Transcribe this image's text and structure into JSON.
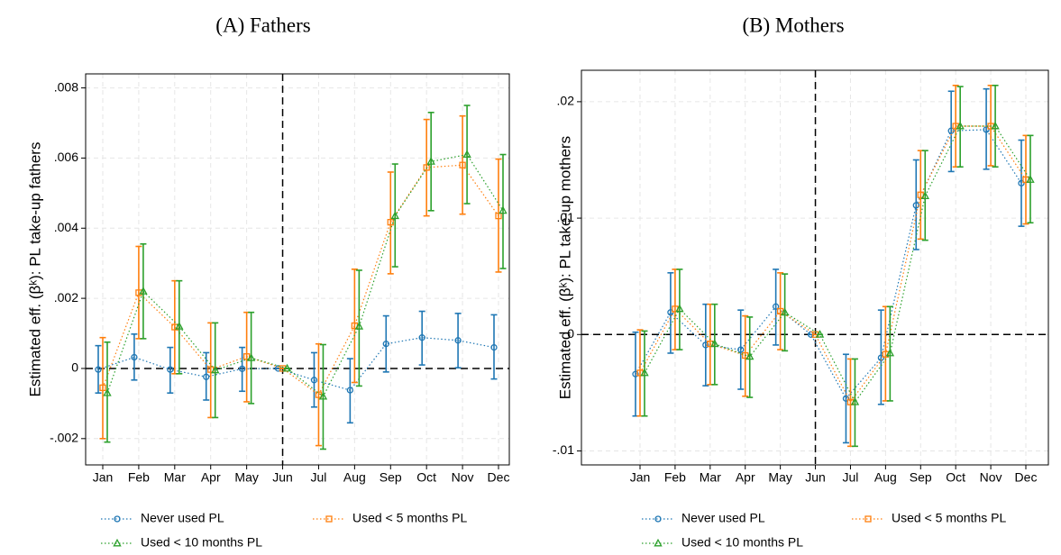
{
  "chart_data": [
    {
      "type": "errorbar",
      "title": "(A) Fathers",
      "ylabel": "Estimated eff. (βᵏ): PL take-up fathers",
      "categories": [
        "Jan",
        "Feb",
        "Mar",
        "Apr",
        "May",
        "Jun",
        "Jul",
        "Aug",
        "Sep",
        "Oct",
        "Nov",
        "Dec"
      ],
      "ylim": [
        -0.00275,
        0.0084
      ],
      "yticks": [
        {
          "value": -0.002,
          "label": "-.002"
        },
        {
          "value": 0,
          "label": "0"
        },
        {
          "value": 0.002,
          "label": ".002"
        },
        {
          "value": 0.004,
          "label": ".004"
        },
        {
          "value": 0.006,
          "label": ".006"
        },
        {
          "value": 0.008,
          "label": ".008"
        }
      ],
      "grid": true,
      "hline": 0,
      "vline_at": "Jun",
      "legend": "bottom",
      "series": [
        {
          "name": "Never used PL",
          "color": "#1f77b4",
          "marker": "circle",
          "values": [
            -3e-05,
            0.00032,
            -3e-05,
            -0.00024,
            -1e-05,
            0,
            -0.00033,
            -0.00062,
            0.0007,
            0.00088,
            0.0008,
            0.0006
          ],
          "low": [
            -0.0007,
            -0.00033,
            -0.0007,
            -0.0009,
            -0.00065,
            0,
            -0.0011,
            -0.00155,
            -0.0001,
            0.0001,
            2e-05,
            -0.0003
          ],
          "high": [
            0.00065,
            0.00098,
            0.0006,
            0.00045,
            0.0006,
            0,
            0.00045,
            0.00028,
            0.0015,
            0.00163,
            0.00157,
            0.00153
          ]
        },
        {
          "name": "Used < 5 months PL",
          "color": "#ff7f0e",
          "marker": "square",
          "values": [
            -0.00055,
            0.00216,
            0.00118,
            -3e-05,
            0.00034,
            0,
            -0.00075,
            0.00122,
            0.00417,
            0.00573,
            0.0058,
            0.00435
          ],
          "low": [
            -0.002,
            0.00085,
            -0.00015,
            -0.0014,
            -0.00095,
            0,
            -0.0022,
            -0.0004,
            0.0027,
            0.00435,
            0.0044,
            0.00275
          ],
          "high": [
            0.00088,
            0.00348,
            0.0025,
            0.0013,
            0.0016,
            0,
            0.0007,
            0.00283,
            0.0056,
            0.0071,
            0.0072,
            0.00597
          ]
        },
        {
          "name": "Used < 10 months PL",
          "color": "#2ca02c",
          "marker": "triangle",
          "values": [
            -0.0007,
            0.0022,
            0.0012,
            -5e-05,
            0.0003,
            0,
            -0.0008,
            0.0012,
            0.00435,
            0.0059,
            0.0061,
            0.0045
          ],
          "low": [
            -0.0021,
            0.00085,
            -0.00015,
            -0.0014,
            -0.001,
            0,
            -0.0023,
            -0.0005,
            0.0029,
            0.0045,
            0.0047,
            0.00285
          ],
          "high": [
            0.00075,
            0.00355,
            0.0025,
            0.0013,
            0.0016,
            0,
            0.00068,
            0.0028,
            0.00583,
            0.0073,
            0.0075,
            0.0061
          ]
        }
      ]
    },
    {
      "type": "errorbar",
      "title": "(B) Mothers",
      "ylabel": "Estimated eff. (βᵏ): PL take-up mothers",
      "categories": [
        "Jan",
        "Feb",
        "Mar",
        "Apr",
        "May",
        "Jun",
        "Jul",
        "Aug",
        "Sep",
        "Oct",
        "Nov",
        "Dec"
      ],
      "ylim": [
        -0.0112,
        0.0227
      ],
      "yticks": [
        {
          "value": -0.01,
          "label": "-.01"
        },
        {
          "value": 0,
          "label": "0"
        },
        {
          "value": 0.01,
          "label": ".01"
        },
        {
          "value": 0.02,
          "label": ".02"
        }
      ],
      "grid": true,
      "hline": 0,
      "vline_at": "Jun",
      "legend": "bottom",
      "series": [
        {
          "name": "Never used PL",
          "color": "#1f77b4",
          "marker": "circle",
          "values": [
            -0.0034,
            0.0019,
            -0.0009,
            -0.0013,
            0.0024,
            0,
            -0.0055,
            -0.002,
            0.0111,
            0.0175,
            0.0176,
            0.013
          ],
          "low": [
            -0.007,
            -0.0016,
            -0.0044,
            -0.0047,
            -0.0009,
            0,
            -0.0093,
            -0.006,
            0.0073,
            0.014,
            0.0142,
            0.0093
          ],
          "high": [
            0.0002,
            0.0053,
            0.0026,
            0.0021,
            0.0056,
            0,
            -0.0017,
            0.0021,
            0.015,
            0.0209,
            0.0211,
            0.0167
          ]
        },
        {
          "name": "Used < 5 months PL",
          "color": "#ff7f0e",
          "marker": "square",
          "values": [
            -0.0033,
            0.0022,
            -0.0008,
            -0.0018,
            0.002,
            0,
            -0.0058,
            -0.0017,
            0.012,
            0.0179,
            0.0179,
            0.0133
          ],
          "low": [
            -0.007,
            -0.0013,
            -0.0043,
            -0.0053,
            -0.0013,
            0,
            -0.0096,
            -0.0057,
            0.0082,
            0.0144,
            0.0145,
            0.0095
          ],
          "high": [
            0.0004,
            0.0056,
            0.0026,
            0.0016,
            0.0053,
            0,
            -0.0021,
            0.0024,
            0.0158,
            0.0214,
            0.0214,
            0.0171
          ]
        },
        {
          "name": "Used < 10 months PL",
          "color": "#2ca02c",
          "marker": "triangle",
          "values": [
            -0.0033,
            0.0022,
            -0.0008,
            -0.0019,
            0.0019,
            0,
            -0.0058,
            -0.0016,
            0.0119,
            0.0179,
            0.0179,
            0.0133
          ],
          "low": [
            -0.007,
            -0.0013,
            -0.0043,
            -0.0054,
            -0.0014,
            0,
            -0.0096,
            -0.0057,
            0.0081,
            0.0144,
            0.0144,
            0.0096
          ],
          "high": [
            0.0003,
            0.0056,
            0.0026,
            0.0015,
            0.0052,
            0,
            -0.0021,
            0.0024,
            0.0158,
            0.0213,
            0.0214,
            0.0171
          ]
        }
      ]
    }
  ]
}
